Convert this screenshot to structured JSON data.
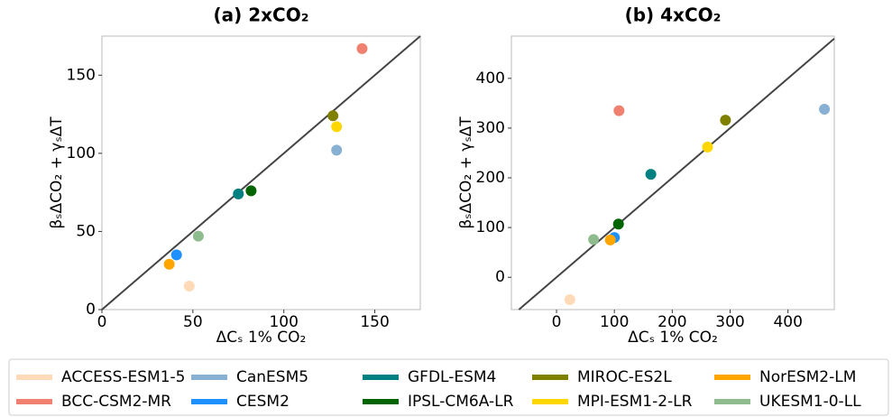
{
  "chart_data": [
    {
      "type": "scatter",
      "title": "(a) 2xCO₂",
      "xlabel": "ΔCₛ 1% CO₂",
      "ylabel": "βₛΔCO₂ + γₛΔT",
      "xlim": [
        0,
        175
      ],
      "ylim": [
        0,
        175
      ],
      "xticks": [
        0,
        50,
        100,
        150
      ],
      "yticks": [
        0,
        50,
        100,
        150
      ],
      "diagonal": true,
      "series": [
        {
          "name": "ACCESS-ESM1-5",
          "color": "#ffdab9",
          "x": [
            48
          ],
          "values": [
            15
          ]
        },
        {
          "name": "BCC-CSM2-MR",
          "color": "#f08070",
          "x": [
            143
          ],
          "values": [
            167
          ]
        },
        {
          "name": "CanESM5",
          "color": "#87b0d2",
          "x": [
            129
          ],
          "values": [
            102
          ]
        },
        {
          "name": "CESM2",
          "color": "#1e90ff",
          "x": [
            41
          ],
          "values": [
            35
          ]
        },
        {
          "name": "GFDL-ESM4",
          "color": "#008080",
          "x": [
            75
          ],
          "values": [
            74
          ]
        },
        {
          "name": "IPSL-CM6A-LR",
          "color": "#006400",
          "x": [
            82
          ],
          "values": [
            76
          ]
        },
        {
          "name": "MIROC-ES2L",
          "color": "#808000",
          "x": [
            127
          ],
          "values": [
            124
          ]
        },
        {
          "name": "MPI-ESM1-2-LR",
          "color": "#ffd700",
          "x": [
            129
          ],
          "values": [
            117
          ]
        },
        {
          "name": "NorESM2-LM",
          "color": "#ffa500",
          "x": [
            37
          ],
          "values": [
            29
          ]
        },
        {
          "name": "UKESM1-0-LL",
          "color": "#8fbc8f",
          "x": [
            53
          ],
          "values": [
            47
          ]
        }
      ]
    },
    {
      "type": "scatter",
      "title": "(b) 4xCO₂",
      "xlabel": "ΔCₛ 1% CO₂",
      "ylabel": "βₛΔCO₂ + γₛΔT",
      "xlim": [
        -78,
        480
      ],
      "ylim": [
        -65,
        485
      ],
      "xticks": [
        0,
        100,
        200,
        300,
        400
      ],
      "yticks": [
        0,
        100,
        200,
        300,
        400
      ],
      "diagonal": true,
      "series": [
        {
          "name": "ACCESS-ESM1-5",
          "color": "#ffdab9",
          "x": [
            23
          ],
          "values": [
            -45
          ]
        },
        {
          "name": "BCC-CSM2-MR",
          "color": "#f08070",
          "x": [
            108
          ],
          "values": [
            335
          ]
        },
        {
          "name": "CanESM5",
          "color": "#87b0d2",
          "x": [
            463
          ],
          "values": [
            338
          ]
        },
        {
          "name": "CESM2",
          "color": "#1e90ff",
          "x": [
            100
          ],
          "values": [
            80
          ]
        },
        {
          "name": "GFDL-ESM4",
          "color": "#008080",
          "x": [
            163
          ],
          "values": [
            207
          ]
        },
        {
          "name": "IPSL-CM6A-LR",
          "color": "#006400",
          "x": [
            107
          ],
          "values": [
            107
          ]
        },
        {
          "name": "MIROC-ES2L",
          "color": "#808000",
          "x": [
            292
          ],
          "values": [
            316
          ]
        },
        {
          "name": "MPI-ESM1-2-LR",
          "color": "#ffd700",
          "x": [
            261
          ],
          "values": [
            262
          ]
        },
        {
          "name": "NorESM2-LM",
          "color": "#ffa500",
          "x": [
            93
          ],
          "values": [
            75
          ]
        },
        {
          "name": "UKESM1-0-LL",
          "color": "#8fbc8f",
          "x": [
            64
          ],
          "values": [
            76
          ]
        }
      ]
    }
  ]
}
